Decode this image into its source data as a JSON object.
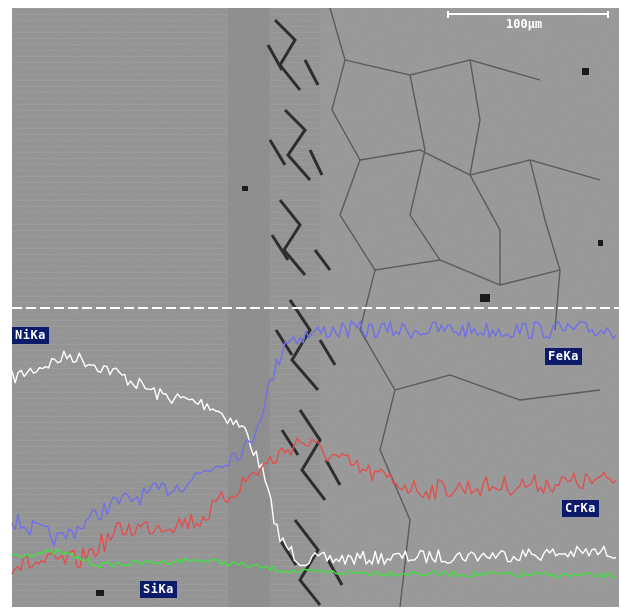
{
  "scale_bar": {
    "label": "100μm",
    "color": "#ffffff"
  },
  "line_scan": {
    "traces": [
      {
        "label": "NiKa",
        "color": "#ffffff"
      },
      {
        "label": "FeKa",
        "color": "#7070e8"
      },
      {
        "label": "CrKa",
        "color": "#e05050"
      },
      {
        "label": "SiKa",
        "color": "#40e040"
      }
    ],
    "label_background": "#0b1a6b"
  }
}
